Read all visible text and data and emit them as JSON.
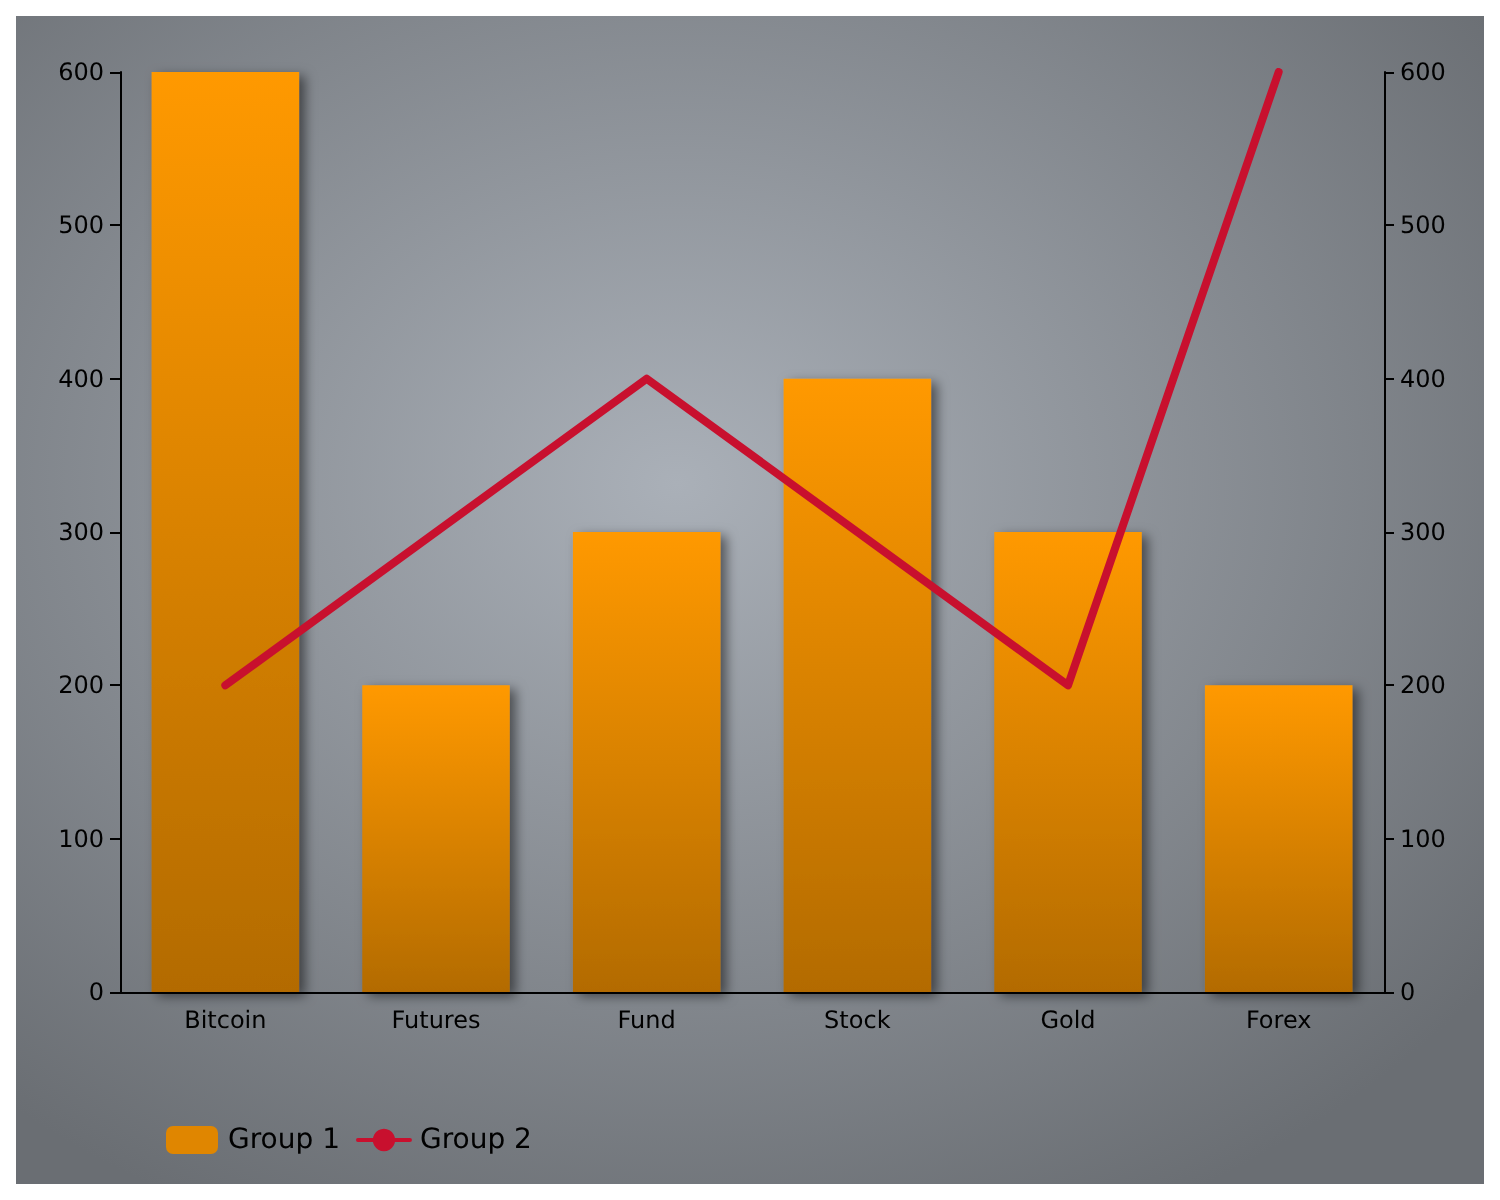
{
  "chart_data": {
    "type": "bar",
    "categories": [
      "Bitcoin",
      "Futures",
      "Fund",
      "Stock",
      "Gold",
      "Forex"
    ],
    "series": [
      {
        "name": "Group 1",
        "color": "#e08600",
        "values": [
          600,
          200,
          300,
          400,
          300,
          200
        ]
      },
      {
        "name": "Group 2",
        "type": "line",
        "color": "#c8102e",
        "values": [
          200,
          300,
          400,
          300,
          200,
          600
        ]
      }
    ],
    "ylim": [
      0,
      600
    ],
    "yticks": [
      0,
      100,
      200,
      300,
      400,
      500,
      600
    ],
    "y2lim": [
      0,
      600
    ],
    "y2ticks": [
      0,
      100,
      200,
      300,
      400,
      500,
      600
    ],
    "grid": false,
    "legend": "bottom left",
    "marker": "none",
    "line_style": "solid"
  }
}
